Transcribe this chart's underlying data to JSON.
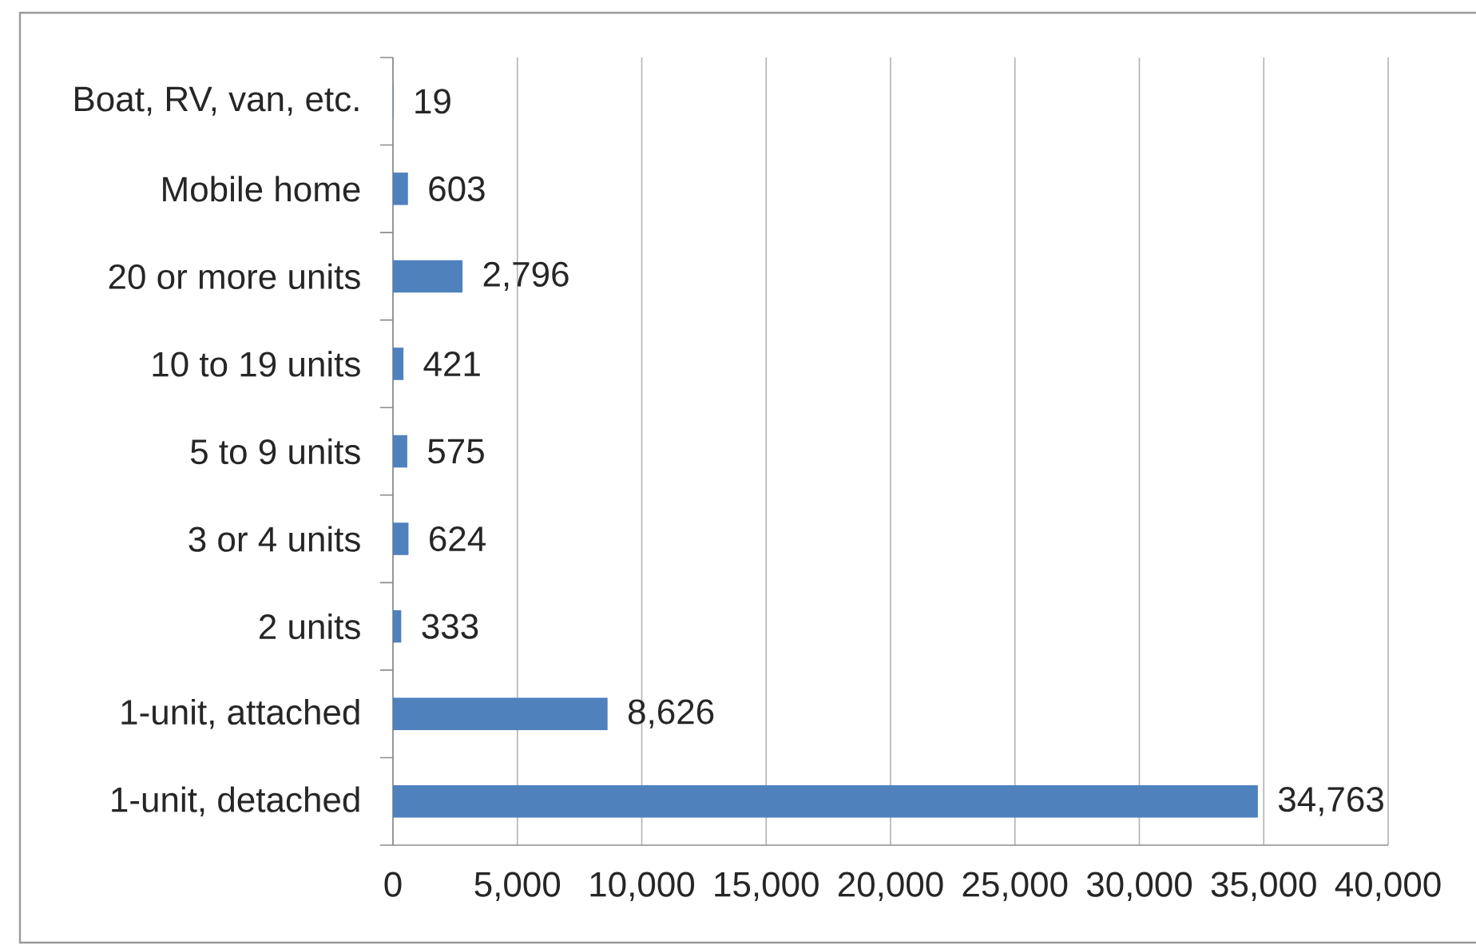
{
  "chart_data": {
    "type": "bar",
    "orientation": "horizontal",
    "categories": [
      "Boat, RV, van, etc.",
      "Mobile home",
      "20 or more units",
      "10 to 19 units",
      "5 to 9 units",
      "3 or 4 units",
      "2 units",
      "1-unit, attached",
      "1-unit, detached"
    ],
    "values": [
      19,
      603,
      2796,
      421,
      575,
      624,
      333,
      8626,
      34763
    ],
    "value_labels": [
      "19",
      "603",
      "2,796",
      "421",
      "575",
      "624",
      "333",
      "8,626",
      "34,763"
    ],
    "color": "#4f81bd",
    "xlim": [
      0,
      40000
    ],
    "xticks": [
      0,
      {
        "value": 5000,
        "label": "5,000"
      },
      {
        "value": 10000,
        "label": "10,000"
      },
      {
        "value": 15000,
        "label": "15,000"
      },
      {
        "value": 20000,
        "label": "20,000"
      },
      {
        "value": 25000,
        "label": "25,000"
      },
      {
        "value": 30000,
        "label": "30,000"
      },
      {
        "value": 35000,
        "label": "35,000"
      },
      {
        "value": 40000,
        "label": "40,000"
      }
    ],
    "grid": "x"
  }
}
